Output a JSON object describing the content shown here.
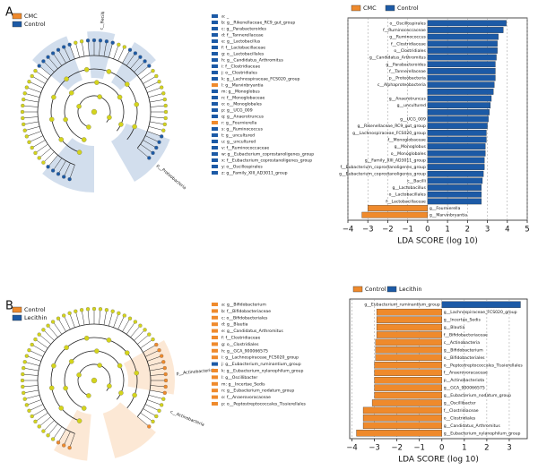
{
  "panels": [
    {
      "label": "A.",
      "cladogram": {
        "legend": [
          {
            "name": "CMC",
            "color": "#ef8a2c"
          },
          {
            "name": "Control",
            "color": "#1c5aa6"
          }
        ],
        "clade_labels": [
          "c__Bacilli",
          "p__Proteobacteria"
        ],
        "taxa": [
          {
            "text": "a: _",
            "color": "#1c5aa6"
          },
          {
            "text": "b: g__Rikenellaceae_RC9_gut_group",
            "color": "#1c5aa6"
          },
          {
            "text": "c: g__Parabacteroides",
            "color": "#1c5aa6"
          },
          {
            "text": "d: f__Tannerellaceae",
            "color": "#1c5aa6"
          },
          {
            "text": "e: g__Lactobacillus",
            "color": "#1c5aa6"
          },
          {
            "text": "f: f__Lactobacillaceae",
            "color": "#1c5aa6"
          },
          {
            "text": "g: o__Lactobacillales",
            "color": "#1c5aa6"
          },
          {
            "text": "h: g__Candidatus_Arthromitus",
            "color": "#1c5aa6"
          },
          {
            "text": "i: f__Clostridiaceae",
            "color": "#1c5aa6"
          },
          {
            "text": "j: o__Clostridiales",
            "color": "#1c5aa6"
          },
          {
            "text": "k: g__Lachnospiraceae_FCS020_group",
            "color": "#1c5aa6"
          },
          {
            "text": "l: g__Marvinbryantia",
            "color": "#ef8a2c"
          },
          {
            "text": "m: g__Monoglobus",
            "color": "#1c5aa6"
          },
          {
            "text": "n: f__Monoglobaceae",
            "color": "#1c5aa6"
          },
          {
            "text": "o: o__Monoglobales",
            "color": "#1c5aa6"
          },
          {
            "text": "p: g__UCG_009",
            "color": "#1c5aa6"
          },
          {
            "text": "q: g__Anaerotruncus",
            "color": "#1c5aa6"
          },
          {
            "text": "r: g__Fournierella",
            "color": "#ef8a2c"
          },
          {
            "text": "s: g__Ruminococcus",
            "color": "#1c5aa6"
          },
          {
            "text": "t: g__uncultured",
            "color": "#1c5aa6"
          },
          {
            "text": "u: g__uncultured",
            "color": "#1c5aa6"
          },
          {
            "text": "v: f__Ruminococcaceae",
            "color": "#1c5aa6"
          },
          {
            "text": "w: g__Eubacterium_coprostanoligenes_group",
            "color": "#1c5aa6"
          },
          {
            "text": "x: f__Eubacterium_coprostanoligenes_group",
            "color": "#1c5aa6"
          },
          {
            "text": "y: o__Oscillospirales",
            "color": "#1c5aa6"
          },
          {
            "text": "z: g__Family_XIII_AD3011_group",
            "color": "#1c5aa6"
          }
        ]
      }
    },
    {
      "label": "B.",
      "cladogram": {
        "legend": [
          {
            "name": "Control",
            "color": "#ef8a2c"
          },
          {
            "name": "Lecithin",
            "color": "#1c5aa6"
          }
        ],
        "clade_labels": [
          "p__Actinobacteriota",
          "c__Actinobacteria"
        ],
        "taxa": [
          {
            "text": "a: g__Bifidobacterium",
            "color": "#ef8a2c"
          },
          {
            "text": "b: f__Bifidobacteriaceae",
            "color": "#ef8a2c"
          },
          {
            "text": "c: o__Bifidobacteriales",
            "color": "#ef8a2c"
          },
          {
            "text": "d: g__Blautia",
            "color": "#ef8a2c"
          },
          {
            "text": "e: g__Candidatus_Arthromitus",
            "color": "#ef8a2c"
          },
          {
            "text": "f: f__Clostridiaceae",
            "color": "#ef8a2c"
          },
          {
            "text": "g: o__Clostridiales",
            "color": "#ef8a2c"
          },
          {
            "text": "h: g__GCA_900066575",
            "color": "#ef8a2c"
          },
          {
            "text": "i: g__Lachnospiraceae_FCS020_group",
            "color": "#ef8a2c"
          },
          {
            "text": "j: g__Eubacterium_ruminantium_group",
            "color": "#1c5aa6"
          },
          {
            "text": "k: g__Eubacterium_xylanophilum_group",
            "color": "#ef8a2c"
          },
          {
            "text": "l: g__Oscillibacter",
            "color": "#ef8a2c"
          },
          {
            "text": "m: g__Incertae_Sedis",
            "color": "#ef8a2c"
          },
          {
            "text": "n: g__Eubacterium_nodatum_group",
            "color": "#ef8a2c"
          },
          {
            "text": "o: f__Anaerovoracaceae",
            "color": "#ef8a2c"
          },
          {
            "text": "p: o__Peptostreptococcales_Tissierellales",
            "color": "#ef8a2c"
          }
        ]
      }
    }
  ],
  "chart_data": [
    {
      "type": "hbar",
      "xlabel": "LDA SCORE (log 10)",
      "grid": true,
      "xlim": [
        -4,
        5
      ],
      "xticks": [
        {
          "value": -4,
          "label": "−4"
        },
        {
          "value": -3,
          "label": "−3"
        },
        {
          "value": -2,
          "label": "−2"
        },
        {
          "value": -1,
          "label": "−1"
        },
        0,
        1,
        2,
        3,
        4,
        5
      ],
      "categories": [
        "o__Oscillospirales",
        "f__Ruminococcaceae",
        "g__Ruminococcus",
        "f__Clostridiaceae",
        "o__Clostridiales",
        "g__Candidatus_Arthromitus",
        "g__Parabacteroides",
        "f__Tannerellaceae",
        "p__Proteobacteria",
        "c__Alphaproteobacteria",
        null,
        "g__Anaerotruncus",
        "g__uncultured",
        null,
        "g__UCG_009",
        "g__Rikenellaceae_RC9_gut_group",
        "g__Lachnospiraceae_FCS020_group",
        "f__Monoglobaceae",
        "g__Monoglobus",
        "o__Monoglobales",
        "g__Family_XIII_AD3011_group",
        "f__Eubacterium_coprostanoligenes_group",
        "g__Eubacterium_coprostanoligenes_group",
        "c__Bacilli",
        "g__Lactobacillus",
        "o__Lactobacillales",
        "f__Lactobacillaceae",
        "g__Fournierella",
        "g__Marvinbryantia"
      ],
      "series": [
        {
          "name": "CMC",
          "color": "#ef8a2c",
          "values": [
            null,
            null,
            null,
            null,
            null,
            null,
            null,
            null,
            null,
            null,
            null,
            null,
            null,
            null,
            null,
            null,
            null,
            null,
            null,
            null,
            null,
            null,
            null,
            null,
            null,
            null,
            null,
            -3.0,
            -3.3
          ]
        },
        {
          "name": "Control",
          "color": "#1c5aa6",
          "values": [
            3.95,
            3.8,
            3.55,
            3.5,
            3.5,
            3.45,
            3.4,
            3.4,
            3.4,
            3.35,
            3.3,
            3.2,
            3.15,
            3.1,
            3.05,
            3.0,
            2.95,
            2.95,
            2.9,
            2.9,
            2.85,
            2.85,
            2.8,
            2.75,
            2.7,
            2.7,
            2.7,
            null,
            null
          ]
        }
      ]
    },
    {
      "type": "hbar",
      "xlabel": "LDA SCORE (log 10)",
      "grid": true,
      "xlim": [
        -4.1,
        3.8
      ],
      "xticks": [
        {
          "value": -4,
          "label": "−4"
        },
        {
          "value": -3,
          "label": "−3"
        },
        {
          "value": -2,
          "label": "−2"
        },
        {
          "value": -1,
          "label": "−1"
        },
        0,
        1,
        2,
        3
      ],
      "categories": [
        "g__Eubacterium_ruminantium_group",
        "g__Lachnospiraceae_FCS020_group",
        "g__Incertae_Sedis",
        "g__Blautia",
        "f__Bifidobacteriaceae",
        "c__Actinobacteria",
        "g__Bifidobacterium",
        "o__Bifidobacteriales",
        "o__Peptostreptococcales_Tissierellales",
        "f__Anaerovoracaceae",
        "p__Actinobacteriota",
        "g__GCA_900066575",
        "g__Eubacterium_nodatum_group",
        "g__Oscillibacter",
        "f__Clostridiaceae",
        "o__Clostridiales",
        "g__Candidatus_Arthromitus",
        "g__Eubacterium_xylanophilum_group"
      ],
      "series": [
        {
          "name": "Control",
          "color": "#ef8a2c",
          "values": [
            null,
            -2.9,
            -2.9,
            -2.9,
            -2.9,
            -2.95,
            -2.95,
            -2.95,
            -3.0,
            -3.0,
            -3.0,
            -3.0,
            -3.0,
            -3.1,
            -3.5,
            -3.5,
            -3.5,
            -3.8
          ]
        },
        {
          "name": "Lecithin",
          "color": "#1c5aa6",
          "values": [
            3.5,
            null,
            null,
            null,
            null,
            null,
            null,
            null,
            null,
            null,
            null,
            null,
            null,
            null,
            null,
            null,
            null,
            null
          ]
        }
      ]
    }
  ]
}
